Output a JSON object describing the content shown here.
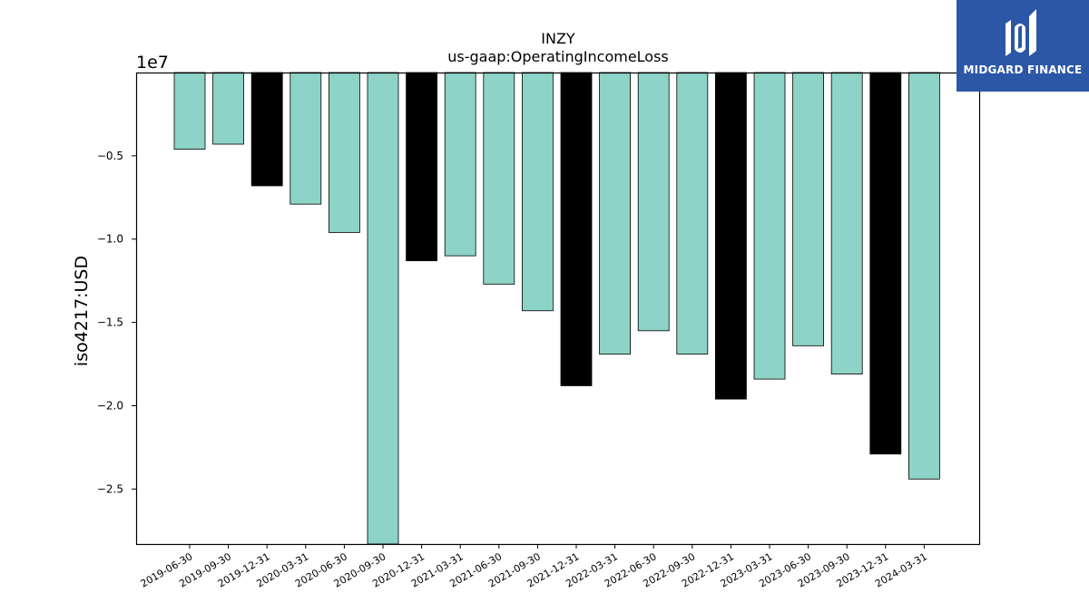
{
  "chart_data": {
    "type": "bar",
    "title": "INZY",
    "subtitle": "us-gaap:OperatingIncomeLoss",
    "ylabel": "iso4217:USD",
    "xlabel": "",
    "offset_text": "1e7",
    "ylim": [
      -28300000,
      0
    ],
    "yticks": [
      -0.5,
      -1.0,
      -1.5,
      -2.0,
      -2.5
    ],
    "ytick_labels": [
      "−0.5",
      "−1.0",
      "−1.5",
      "−2.0",
      "−2.5"
    ],
    "ytick_scale": 10000000,
    "grid": false,
    "categories": [
      "2019-06-30",
      "2019-09-30",
      "2019-12-31",
      "2020-03-31",
      "2020-06-30",
      "2020-09-30",
      "2020-12-31",
      "2021-03-31",
      "2021-06-30",
      "2021-09-30",
      "2021-12-31",
      "2022-03-31",
      "2022-06-30",
      "2022-09-30",
      "2022-12-31",
      "2023-03-31",
      "2023-06-30",
      "2023-09-30",
      "2023-12-31",
      "2024-03-31"
    ],
    "values": [
      -4600000,
      -4300000,
      -6800000,
      -7900000,
      -9600000,
      -28300000,
      -11300000,
      -11000000,
      -12700000,
      -14300000,
      -18800000,
      -16900000,
      -15500000,
      -16900000,
      -19600000,
      -18400000,
      -16400000,
      -18100000,
      -22900000,
      -24400000
    ],
    "bar_colors": [
      "#8dd3c7",
      "#8dd3c7",
      "#000000",
      "#8dd3c7",
      "#8dd3c7",
      "#8dd3c7",
      "#000000",
      "#8dd3c7",
      "#8dd3c7",
      "#8dd3c7",
      "#000000",
      "#8dd3c7",
      "#8dd3c7",
      "#8dd3c7",
      "#000000",
      "#8dd3c7",
      "#8dd3c7",
      "#8dd3c7",
      "#000000",
      "#8dd3c7"
    ],
    "colors": {
      "teal": "#8dd3c7",
      "black": "#000000"
    }
  },
  "logo": {
    "text": "MIDGARD FINANCE",
    "background": "#2c57a7"
  }
}
